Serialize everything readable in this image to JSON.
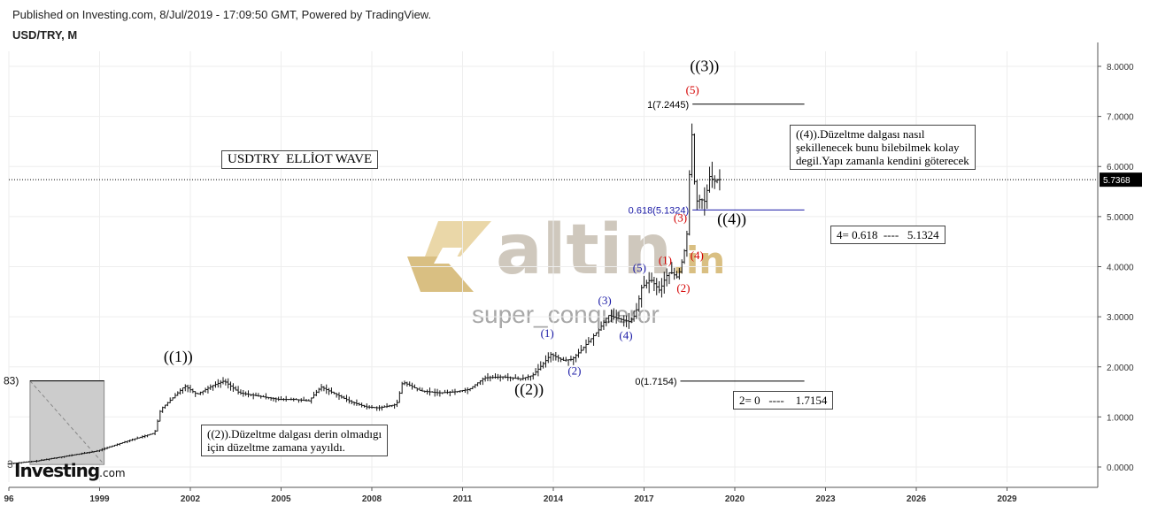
{
  "header": {
    "published": "Published on Investing.com, 8/Jul/2019 - 17:09:50 GMT, Powered by TradingView.",
    "symbol": "USD/TRY, M"
  },
  "watermark": {
    "logo_text": "altin",
    "logo_suffix": ".in",
    "sub_text": "super_conqueror"
  },
  "brand": {
    "name": "Investing",
    "suffix": ".com"
  },
  "colors": {
    "grid": "#eeeeee",
    "candle": "#111111",
    "wave_black": "#000000",
    "wave_red": "#d40000",
    "wave_blue": "#1a1aa6",
    "fib_blue": "#1a1aa6",
    "last_price_bg": "#000000"
  },
  "chart_data": {
    "type": "line",
    "title": "USDTRY  ELLİOT WAVE",
    "x_axis": {
      "start": 1996,
      "end": 2032,
      "tick_labels": [
        "96",
        "1999",
        "2002",
        "2005",
        "2008",
        "2011",
        "2014",
        "2017",
        "2020",
        "2023",
        "2026",
        "2029"
      ],
      "tick_years": [
        1996,
        1999,
        2002,
        2005,
        2008,
        2011,
        2014,
        2017,
        2020,
        2023,
        2026,
        2029
      ]
    },
    "y_axis": {
      "min": -0.3,
      "max": 8.3,
      "ticks": [
        "0.0000",
        "1.0000",
        "2.0000",
        "3.0000",
        "4.0000",
        "5.0000",
        "6.0000",
        "7.0000",
        "8.0000"
      ],
      "tick_values": [
        0,
        1,
        2,
        3,
        4,
        5,
        6,
        7,
        8
      ]
    },
    "last_price": {
      "value": 5.7368,
      "label": "5.7368"
    },
    "price_path": [
      [
        1996.0,
        0.06
      ],
      [
        1997.0,
        0.12
      ],
      [
        1998.0,
        0.22
      ],
      [
        1999.0,
        0.32
      ],
      [
        2000.0,
        0.52
      ],
      [
        2000.9,
        0.68
      ],
      [
        2001.1,
        1.15
      ],
      [
        2001.5,
        1.38
      ],
      [
        2001.9,
        1.62
      ],
      [
        2002.3,
        1.45
      ],
      [
        2002.8,
        1.62
      ],
      [
        2003.2,
        1.72
      ],
      [
        2003.7,
        1.48
      ],
      [
        2004.5,
        1.4
      ],
      [
        2005.0,
        1.35
      ],
      [
        2005.5,
        1.35
      ],
      [
        2006.0,
        1.32
      ],
      [
        2006.4,
        1.6
      ],
      [
        2006.9,
        1.45
      ],
      [
        2007.4,
        1.3
      ],
      [
        2007.9,
        1.2
      ],
      [
        2008.3,
        1.18
      ],
      [
        2008.9,
        1.25
      ],
      [
        2009.1,
        1.7
      ],
      [
        2009.7,
        1.52
      ],
      [
        2010.3,
        1.48
      ],
      [
        2010.8,
        1.5
      ],
      [
        2011.3,
        1.55
      ],
      [
        2011.8,
        1.78
      ],
      [
        2012.4,
        1.8
      ],
      [
        2013.0,
        1.76
      ],
      [
        2013.4,
        1.83
      ],
      [
        2013.8,
        2.1
      ],
      [
        2014.0,
        2.25
      ],
      [
        2014.4,
        2.13
      ],
      [
        2014.7,
        2.15
      ],
      [
        2015.0,
        2.33
      ],
      [
        2015.6,
        2.75
      ],
      [
        2015.9,
        3.03
      ],
      [
        2016.3,
        2.95
      ],
      [
        2016.6,
        2.9
      ],
      [
        2016.8,
        3.05
      ],
      [
        2017.0,
        3.58
      ],
      [
        2017.3,
        3.75
      ],
      [
        2017.6,
        3.52
      ],
      [
        2017.8,
        3.8
      ],
      [
        2017.95,
        3.9
      ],
      [
        2018.2,
        3.78
      ],
      [
        2018.4,
        4.25
      ],
      [
        2018.55,
        4.85
      ],
      [
        2018.63,
        7.22
      ],
      [
        2018.7,
        6.1
      ],
      [
        2018.8,
        5.3
      ],
      [
        2018.95,
        5.35
      ],
      [
        2019.1,
        5.3
      ],
      [
        2019.25,
        5.8
      ],
      [
        2019.4,
        5.7
      ],
      [
        2019.52,
        5.74
      ]
    ],
    "waves": [
      {
        "label": "((1))",
        "x": 2001.6,
        "y": 2.1,
        "color": "wave_black",
        "size": "big"
      },
      {
        "label": "((2))",
        "x": 2013.2,
        "y": 1.45,
        "color": "wave_black",
        "size": "big"
      },
      {
        "label": "((3))",
        "x": 2019.0,
        "y": 7.9,
        "color": "wave_black",
        "size": "big"
      },
      {
        "label": "((4))",
        "x": 2019.9,
        "y": 4.85,
        "color": "wave_black",
        "size": "big"
      },
      {
        "label": "(5)",
        "x": 2018.6,
        "y": 7.45,
        "color": "wave_red",
        "size": "small"
      },
      {
        "label": "(1)",
        "x": 2017.7,
        "y": 4.05,
        "color": "wave_red",
        "size": "small"
      },
      {
        "label": "(2)",
        "x": 2018.3,
        "y": 3.5,
        "color": "wave_red",
        "size": "small"
      },
      {
        "label": "(3)",
        "x": 2018.2,
        "y": 4.9,
        "color": "wave_red",
        "size": "small"
      },
      {
        "label": "(4)",
        "x": 2018.75,
        "y": 4.15,
        "color": "wave_red",
        "size": "small"
      },
      {
        "label": "(1)",
        "x": 2013.8,
        "y": 2.6,
        "color": "wave_blue",
        "size": "small"
      },
      {
        "label": "(2)",
        "x": 2014.7,
        "y": 1.85,
        "color": "wave_blue",
        "size": "small"
      },
      {
        "label": "(3)",
        "x": 2015.7,
        "y": 3.25,
        "color": "wave_blue",
        "size": "small"
      },
      {
        "label": "(4)",
        "x": 2016.4,
        "y": 2.55,
        "color": "wave_blue",
        "size": "small"
      },
      {
        "label": "(5)",
        "x": 2016.85,
        "y": 3.9,
        "color": "wave_blue",
        "size": "small"
      }
    ],
    "fib_levels": [
      {
        "label": "1(7.2445)",
        "value": 7.2445,
        "x_start": 2018.6,
        "x_end": 2022.3,
        "color": "wave_black"
      },
      {
        "label": "0.618(5.1324)",
        "value": 5.1324,
        "x_start": 2018.6,
        "x_end": 2022.3,
        "color": "fib_blue"
      },
      {
        "label": "0(1.7154)",
        "value": 1.7154,
        "x_start": 2018.2,
        "x_end": 2022.3,
        "color": "wave_black"
      }
    ],
    "left_box": {
      "label_top": "83)",
      "label_bottom": "3",
      "y_top": 1.72,
      "y_bottom": 0.05,
      "x_start": 1996.7,
      "x_end": 1999.15
    },
    "annotations": [
      {
        "text": "USDTRY  ELLİOT WAVE"
      },
      {
        "text": "((4)).Düzeltme dalgası nasıl\nşekillenecek bunu bilebilmek kolay\ndegil.Yapı zamanla kendini göterecek"
      },
      {
        "text": "4= 0.618  ----   5.1324"
      },
      {
        "text": "2= 0   ----    1.7154"
      },
      {
        "text": "((2)).Düzeltme dalgası derin olmadıgı\niçin düzeltme zamana yayıldı."
      }
    ]
  }
}
